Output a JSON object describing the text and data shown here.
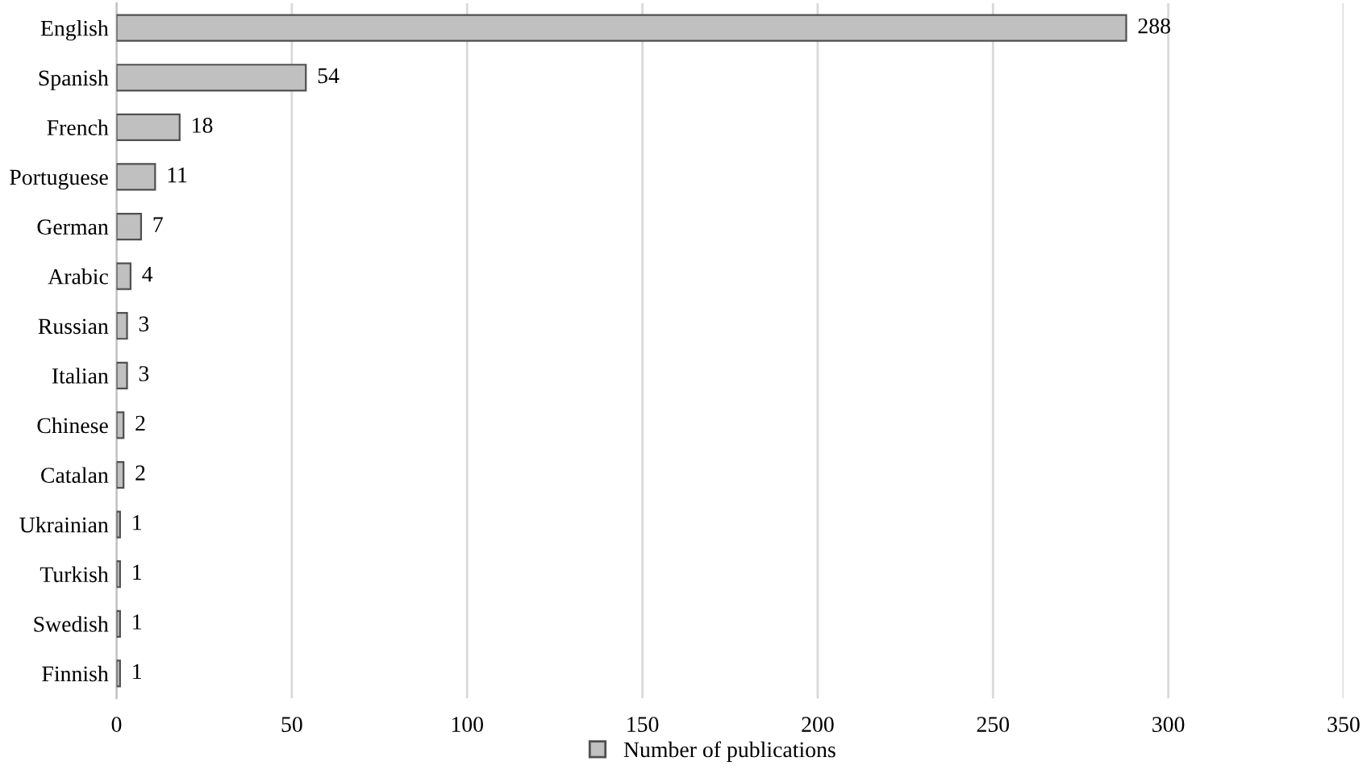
{
  "chart_data": {
    "type": "bar",
    "orientation": "horizontal",
    "categories": [
      "English",
      "Spanish",
      "French",
      "Portuguese",
      "German",
      "Arabic",
      "Russian",
      "Italian",
      "Chinese",
      "Catalan",
      "Ukrainian",
      "Turkish",
      "Swedish",
      "Finnish"
    ],
    "series": [
      {
        "name": "Number of publications",
        "color": "#c0c0c0",
        "values": [
          288,
          54,
          18,
          11,
          7,
          4,
          3,
          3,
          2,
          2,
          1,
          1,
          1,
          1
        ]
      }
    ],
    "xlim": [
      0,
      350
    ],
    "xticks": [
      0,
      50,
      100,
      150,
      200,
      250,
      300,
      350
    ],
    "grid": "x",
    "legend": "bottom",
    "data_labels": true
  }
}
